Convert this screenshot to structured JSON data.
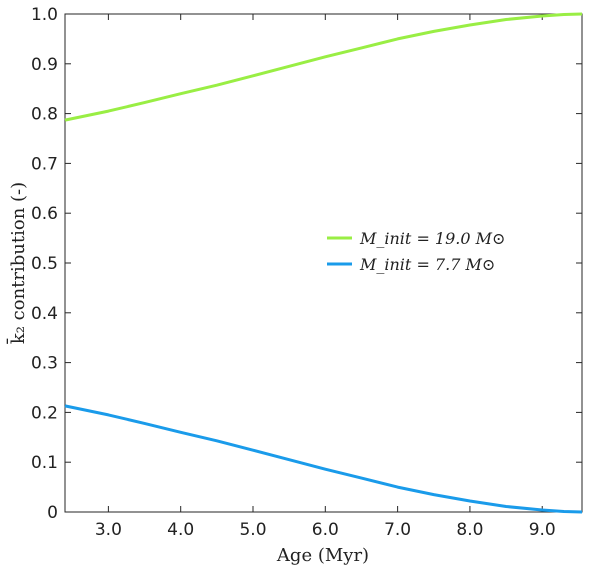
{
  "chart_data": {
    "type": "line",
    "title": "",
    "xlabel": "Age (Myr)",
    "ylabel": "k̄₂ contribution (-)",
    "xlim": [
      2.4,
      9.55
    ],
    "ylim": [
      0,
      1.0
    ],
    "x_ticks": [
      "3.0",
      "4.0",
      "5.0",
      "6.0",
      "7.0",
      "8.0",
      "9.0"
    ],
    "y_ticks": [
      "0",
      "0.1",
      "0.2",
      "0.3",
      "0.4",
      "0.5",
      "0.6",
      "0.7",
      "0.8",
      "0.9",
      "1.0"
    ],
    "grid": false,
    "legend_position": "center-right",
    "series": [
      {
        "name": "M_init = 19.0 M⊙",
        "color": "#99ee44",
        "x": [
          2.4,
          3.0,
          3.5,
          4.0,
          4.5,
          5.0,
          5.5,
          6.0,
          6.5,
          7.0,
          7.5,
          8.0,
          8.5,
          9.0,
          9.3,
          9.55
        ],
        "values": [
          0.787,
          0.805,
          0.822,
          0.84,
          0.857,
          0.876,
          0.895,
          0.914,
          0.932,
          0.95,
          0.965,
          0.978,
          0.989,
          0.996,
          0.999,
          1.0
        ]
      },
      {
        "name": "M_init = 7.7 M⊙",
        "color": "#1a9bea",
        "x": [
          2.4,
          3.0,
          3.5,
          4.0,
          4.5,
          5.0,
          5.5,
          6.0,
          6.5,
          7.0,
          7.5,
          8.0,
          8.5,
          9.0,
          9.3,
          9.55
        ],
        "values": [
          0.213,
          0.195,
          0.178,
          0.16,
          0.143,
          0.124,
          0.105,
          0.086,
          0.068,
          0.05,
          0.035,
          0.022,
          0.011,
          0.004,
          0.001,
          0.0
        ]
      }
    ]
  }
}
